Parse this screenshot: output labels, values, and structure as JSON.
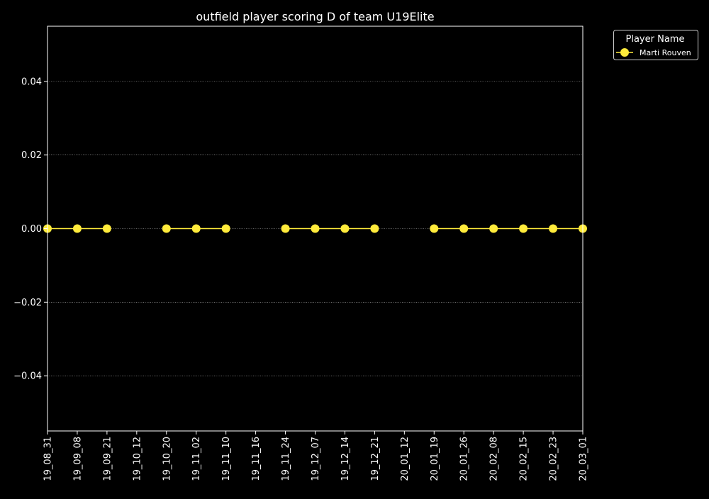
{
  "chart_data": {
    "type": "line",
    "title": "outfield player scoring D of team U19Elite",
    "xlabel": "",
    "ylabel": "",
    "categories": [
      "19_08_31",
      "19_09_08",
      "19_09_21",
      "19_10_12",
      "19_10_20",
      "19_11_02",
      "19_11_10",
      "19_11_16",
      "19_11_24",
      "19_12_07",
      "19_12_14",
      "19_12_21",
      "20_01_12",
      "20_01_19",
      "20_01_26",
      "20_02_08",
      "20_02_15",
      "20_02_23",
      "20_03_01"
    ],
    "ylim": [
      -0.055,
      0.055
    ],
    "yticks": [
      -0.04,
      -0.02,
      0.0,
      0.02,
      0.04
    ],
    "ytick_labels": [
      "−0.04",
      "−0.02",
      "0.00",
      "0.02",
      "0.04"
    ],
    "grid": "horizontal dotted",
    "legend": {
      "title": "Player Name",
      "placement": "outside top-right"
    },
    "series": [
      {
        "name": "Marti Rouven",
        "color": "#ffeb3b",
        "values": [
          0,
          0,
          0,
          null,
          0,
          0,
          0,
          null,
          0,
          0,
          0,
          0,
          null,
          0,
          0,
          0,
          0,
          0,
          0
        ]
      }
    ]
  }
}
